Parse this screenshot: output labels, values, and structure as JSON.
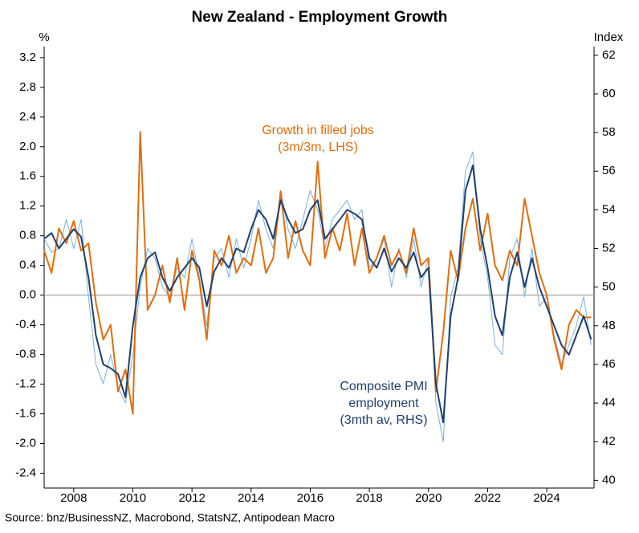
{
  "chart_data": {
    "type": "line",
    "title": "New Zealand - Employment Growth",
    "y_label": "%",
    "y2_label": "Index",
    "source": "Source: bnz/BusinessNZ, Macrobond, StatsNZ, Antipodean Macro",
    "x": [
      2007,
      2007.25,
      2007.5,
      2007.75,
      2008,
      2008.25,
      2008.5,
      2008.75,
      2009,
      2009.25,
      2009.5,
      2009.75,
      2010,
      2010.25,
      2010.5,
      2010.75,
      2011,
      2011.25,
      2011.5,
      2011.75,
      2012,
      2012.25,
      2012.5,
      2012.75,
      2013,
      2013.25,
      2013.5,
      2013.75,
      2014,
      2014.25,
      2014.5,
      2014.75,
      2015,
      2015.25,
      2015.5,
      2015.75,
      2016,
      2016.25,
      2016.5,
      2016.75,
      2017,
      2017.25,
      2017.5,
      2017.75,
      2018,
      2018.25,
      2018.5,
      2018.75,
      2019,
      2019.25,
      2019.5,
      2019.75,
      2020,
      2020.25,
      2020.5,
      2020.75,
      2021,
      2021.25,
      2021.5,
      2021.75,
      2022,
      2022.25,
      2022.5,
      2022.75,
      2023,
      2023.25,
      2023.5,
      2023.75,
      2024,
      2024.25,
      2024.5,
      2024.75,
      2025,
      2025.25,
      2025.5
    ],
    "series": [
      {
        "color": "#7aaee0",
        "axis": "y2",
        "width": 1,
        "values": [
          52.5,
          51.8,
          52.0,
          53.5,
          52.0,
          53.5,
          49.5,
          46.0,
          45.0,
          46.5,
          44.8,
          44.0,
          46.5,
          50.0,
          52.0,
          51.5,
          50.0,
          49.5,
          51.0,
          50.5,
          52.5,
          50.5,
          48.0,
          51.5,
          52.0,
          50.5,
          52.5,
          51.0,
          52.5,
          54.5,
          53.0,
          52.0,
          55.0,
          53.0,
          52.0,
          53.5,
          55.0,
          54.0,
          52.0,
          53.5,
          54.0,
          54.5,
          53.5,
          54.0,
          51.0,
          51.5,
          52.5,
          50.0,
          52.0,
          50.5,
          52.5,
          50.0,
          51.5,
          44.0,
          42.0,
          49.5,
          51.0,
          56.0,
          57.0,
          52.5,
          50.5,
          47.0,
          46.5,
          51.5,
          52.5,
          49.5,
          52.0,
          49.0,
          49.5,
          47.5,
          46.0,
          47.0,
          48.0,
          49.5,
          47.0
        ]
      },
      {
        "color": "#e36c0a",
        "width": 2,
        "values": [
          0.6,
          0.3,
          0.9,
          0.7,
          1.0,
          0.6,
          0.7,
          -0.1,
          -0.6,
          -0.4,
          -1.3,
          -1.0,
          -1.6,
          2.2,
          -0.2,
          0.0,
          0.4,
          -0.1,
          0.5,
          -0.2,
          0.6,
          0.2,
          -0.6,
          0.6,
          0.4,
          0.8,
          0.3,
          0.5,
          0.4,
          0.9,
          0.3,
          0.5,
          1.4,
          0.5,
          1.0,
          0.6,
          0.4,
          1.8,
          0.5,
          0.9,
          0.6,
          1.1,
          0.4,
          0.9,
          0.3,
          0.5,
          0.8,
          0.4,
          0.6,
          0.3,
          0.9,
          0.4,
          0.5,
          -1.3,
          -0.5,
          0.6,
          0.2,
          0.9,
          1.3,
          0.6,
          1.1,
          0.4,
          0.2,
          0.6,
          0.4,
          1.3,
          0.8,
          0.3,
          0.0,
          -0.6,
          -1.0,
          -0.4,
          -0.2,
          -0.3,
          -0.3
        ]
      },
      {
        "color": "#1f3f6e",
        "axis": "y2",
        "width": 2,
        "values": [
          52.5,
          52.8,
          52.0,
          52.5,
          53.0,
          52.6,
          50.5,
          47.5,
          46.0,
          45.8,
          45.5,
          44.3,
          48.0,
          50.5,
          51.5,
          51.8,
          50.5,
          49.8,
          50.5,
          51.0,
          51.5,
          51.0,
          49.0,
          50.8,
          51.5,
          51.0,
          52.0,
          51.8,
          53.0,
          54.0,
          53.5,
          52.5,
          54.5,
          53.5,
          52.8,
          53.0,
          54.0,
          54.5,
          52.5,
          53.0,
          53.5,
          54.0,
          53.8,
          53.5,
          51.5,
          51.0,
          52.0,
          50.8,
          51.5,
          51.0,
          51.8,
          50.5,
          51.0,
          45.0,
          43.0,
          48.5,
          50.5,
          55.0,
          56.3,
          53.0,
          51.0,
          48.5,
          47.5,
          50.5,
          51.8,
          50.0,
          51.5,
          50.0,
          49.0,
          48.0,
          47.0,
          46.5,
          47.5,
          48.5,
          47.3
        ]
      }
    ],
    "annotations": [
      {
        "lines": [
          "Growth in filled jobs",
          "(3m/3m, LHS)"
        ],
        "color": "#e36c0a"
      },
      {
        "lines": [
          "Composite PMI",
          "employment",
          "(3mth av, RHS)"
        ],
        "color": "#1f3f6e"
      }
    ],
    "xlim": [
      2007,
      2025.6
    ],
    "xticks": [
      2008,
      2010,
      2012,
      2014,
      2016,
      2018,
      2020,
      2022,
      2024
    ],
    "ylim": [
      -2.6,
      3.35
    ],
    "yticks": [
      {
        "value": -2.4,
        "label": "-2.4"
      },
      {
        "value": -2.0,
        "label": "-2.0"
      },
      -1.6,
      -1.2,
      -0.8,
      -0.4,
      {
        "value": 0,
        "label": "0.0"
      },
      0.4,
      0.8,
      1.2,
      1.6,
      {
        "value": 2.0,
        "label": "2.0"
      },
      2.4,
      2.8,
      3.2
    ],
    "y2lim": [
      39.6,
      62.45
    ],
    "y2ticks": [
      40,
      42,
      44,
      46,
      48,
      50,
      52,
      54,
      56,
      58,
      60,
      62
    ]
  }
}
